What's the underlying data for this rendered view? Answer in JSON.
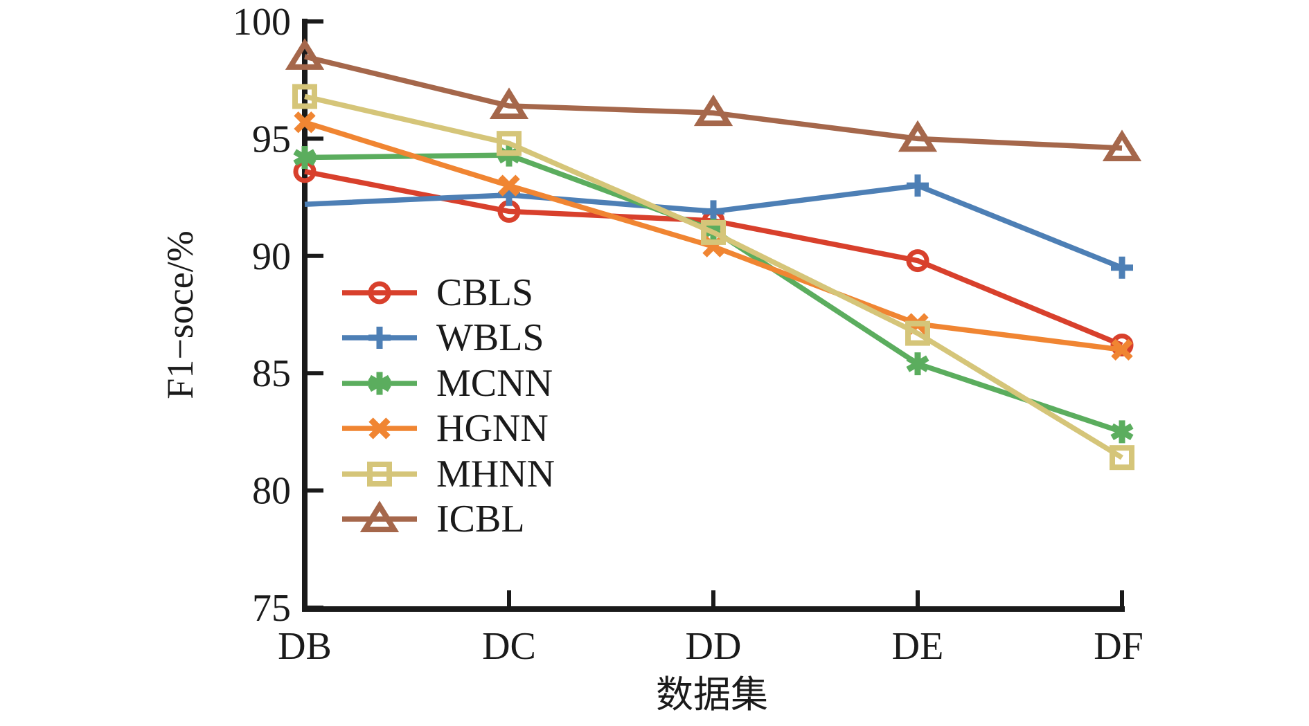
{
  "figure": {
    "background": "#ffffff",
    "text_color": "#1a1a1a",
    "axis_color": "#1a1a1a"
  },
  "chart_data": {
    "type": "line",
    "title": "",
    "xlabel": "数据集",
    "ylabel": "F1−soce/%",
    "categories": [
      "DB",
      "DC",
      "DD",
      "DE",
      "DF"
    ],
    "ylim": [
      75,
      100
    ],
    "yticks": [
      75,
      80,
      85,
      90,
      95,
      100
    ],
    "grid": false,
    "legend_position": "upper-left-inside",
    "series": [
      {
        "name": "CBLS",
        "color": "#D8402C",
        "marker": "circle",
        "values": [
          93.6,
          91.9,
          91.5,
          89.8,
          86.2
        ]
      },
      {
        "name": "WBLS",
        "color": "#4D7FB5",
        "marker": "plus",
        "values": [
          92.2,
          92.6,
          91.9,
          93.0,
          89.5
        ],
        "hide_marker_at": [
          0
        ]
      },
      {
        "name": "MCNN",
        "color": "#5BAD5E",
        "marker": "asterisk",
        "values": [
          94.2,
          94.3,
          91.1,
          85.4,
          82.5
        ]
      },
      {
        "name": "HGNN",
        "color": "#F08532",
        "marker": "x",
        "values": [
          95.7,
          93.0,
          90.4,
          87.1,
          86.0
        ]
      },
      {
        "name": "MHNN",
        "color": "#D5C579",
        "marker": "square",
        "values": [
          96.8,
          94.8,
          91.0,
          86.7,
          81.4
        ]
      },
      {
        "name": "ICBL",
        "color": "#A5674B",
        "marker": "triangle",
        "values": [
          98.5,
          96.4,
          96.1,
          95.0,
          94.6
        ]
      }
    ]
  }
}
